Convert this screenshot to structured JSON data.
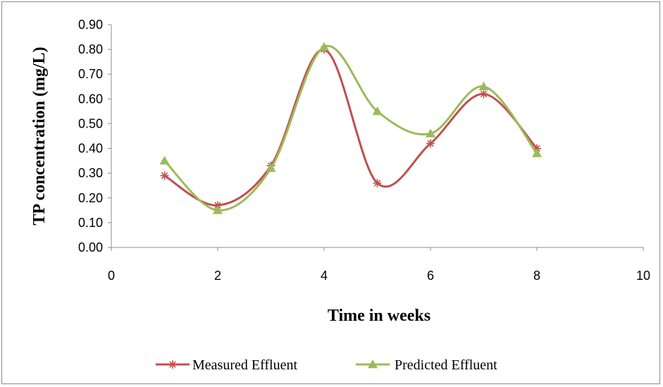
{
  "chart_data": {
    "type": "scatter",
    "xlabel": "Time in  weeks",
    "ylabel": "TP concentration (mg/L)",
    "xlim": [
      0,
      10
    ],
    "ylim": [
      0,
      0.9
    ],
    "x_ticks": [
      "0",
      "2",
      "4",
      "6",
      "8",
      "10"
    ],
    "y_ticks": [
      "0.00",
      "0.10",
      "0.20",
      "0.30",
      "0.40",
      "0.50",
      "0.60",
      "0.70",
      "0.80",
      "0.90"
    ],
    "grid": false,
    "smooth_lines": true,
    "legend_position": "bottom",
    "series": [
      {
        "name": "Measured Effluent",
        "marker": "asterisk",
        "color": "#c0504d",
        "x": [
          1,
          2,
          3,
          4,
          5,
          6,
          7,
          8
        ],
        "y": [
          0.29,
          0.17,
          0.33,
          0.8,
          0.26,
          0.42,
          0.62,
          0.4
        ]
      },
      {
        "name": "Predicted Effluent",
        "marker": "triangle",
        "color": "#9bbb59",
        "x": [
          1,
          2,
          3,
          4,
          5,
          6,
          7,
          8
        ],
        "y": [
          0.35,
          0.15,
          0.32,
          0.81,
          0.55,
          0.46,
          0.65,
          0.38
        ]
      }
    ]
  }
}
